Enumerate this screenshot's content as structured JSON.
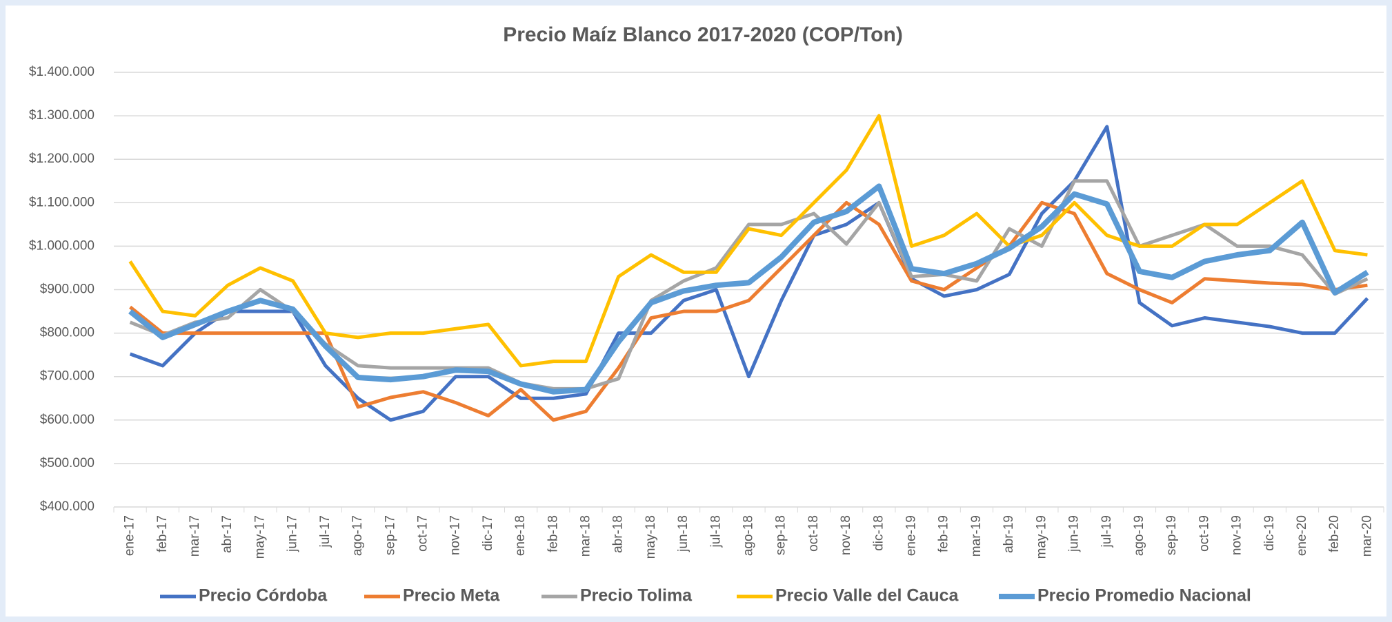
{
  "chart_data": {
    "type": "line",
    "title": "Precio Maíz Blanco 2017-2020 (COP/Ton)",
    "categories": [
      "ene-17",
      "feb-17",
      "mar-17",
      "abr-17",
      "may-17",
      "jun-17",
      "jul-17",
      "ago-17",
      "sep-17",
      "oct-17",
      "nov-17",
      "dic-17",
      "ene-18",
      "feb-18",
      "mar-18",
      "abr-18",
      "may-18",
      "jun-18",
      "jul-18",
      "ago-18",
      "sep-18",
      "oct-18",
      "nov-18",
      "dic-18",
      "ene-19",
      "feb-19",
      "mar-19",
      "abr-19",
      "may-19",
      "jun-19",
      "jul-19",
      "ago-19",
      "sep-19",
      "oct-19",
      "nov-19",
      "dic-19",
      "ene-20",
      "feb-20",
      "mar-20"
    ],
    "series": [
      {
        "name": "Precio Córdoba",
        "color": "#4472c4",
        "values": [
          752000,
          725000,
          800000,
          850000,
          850000,
          850000,
          725000,
          650000,
          600000,
          620000,
          700000,
          700000,
          650000,
          650000,
          660000,
          800000,
          800000,
          875000,
          900000,
          700000,
          875000,
          1025000,
          1050000,
          1100000,
          925000,
          885000,
          900000,
          935000,
          1075000,
          1150000,
          1275000,
          870000,
          817000,
          835000,
          825000,
          815000,
          800000,
          800000,
          880000
        ]
      },
      {
        "name": "Precio Meta",
        "color": "#ed7d31",
        "values": [
          860000,
          800000,
          800000,
          800000,
          800000,
          800000,
          800000,
          630000,
          652000,
          665000,
          640000,
          610000,
          670000,
          600000,
          620000,
          720000,
          835000,
          850000,
          850000,
          875000,
          950000,
          1025000,
          1100000,
          1050000,
          920000,
          900000,
          950000,
          1000000,
          1100000,
          1075000,
          937000,
          900000,
          870000,
          925000,
          920000,
          915000,
          912000,
          900000,
          910000
        ]
      },
      {
        "name": "Precio Tolima",
        "color": "#a5a5a5",
        "values": [
          825000,
          795000,
          825000,
          835000,
          900000,
          850000,
          775000,
          725000,
          720000,
          720000,
          720000,
          720000,
          685000,
          672000,
          672000,
          695000,
          875000,
          920000,
          950000,
          1050000,
          1050000,
          1075000,
          1005000,
          1100000,
          930000,
          935000,
          920000,
          1040000,
          1000000,
          1150000,
          1150000,
          1000000,
          1025000,
          1050000,
          1000000,
          1000000,
          980000,
          890000,
          925000
        ]
      },
      {
        "name": "Precio Valle del Cauca",
        "color": "#ffc000",
        "values": [
          965000,
          850000,
          840000,
          910000,
          950000,
          920000,
          800000,
          790000,
          800000,
          800000,
          810000,
          820000,
          725000,
          735000,
          735000,
          930000,
          980000,
          940000,
          940000,
          1040000,
          1025000,
          1100000,
          1175000,
          1300000,
          1000000,
          1025000,
          1075000,
          1000000,
          1025000,
          1100000,
          1025000,
          1000000,
          1000000,
          1050000,
          1050000,
          1100000,
          1150000,
          990000,
          980000
        ]
      },
      {
        "name": "Precio Promedio Nacional",
        "color": "#5b9bd5",
        "values": [
          850000,
          790000,
          820000,
          850000,
          875000,
          855000,
          770000,
          698000,
          693000,
          700000,
          715000,
          712000,
          683000,
          665000,
          670000,
          780000,
          870000,
          897000,
          910000,
          916000,
          975000,
          1055000,
          1080000,
          1138000,
          948000,
          937000,
          960000,
          995000,
          1045000,
          1120000,
          1097000,
          942000,
          928000,
          965000,
          980000,
          990000,
          1055000,
          893000,
          940000
        ]
      }
    ],
    "ylim": [
      400000,
      1400000
    ],
    "yticks": [
      {
        "value": 400000,
        "label": "$400.000"
      },
      {
        "value": 500000,
        "label": "$500.000"
      },
      {
        "value": 600000,
        "label": "$600.000"
      },
      {
        "value": 700000,
        "label": "$700.000"
      },
      {
        "value": 800000,
        "label": "$800.000"
      },
      {
        "value": 900000,
        "label": "$900.000"
      },
      {
        "value": 1000000,
        "label": "$1.000.000"
      },
      {
        "value": 1100000,
        "label": "$1.100.000"
      },
      {
        "value": 1200000,
        "label": "$1.200.000"
      },
      {
        "value": 1300000,
        "label": "$1.300.000"
      },
      {
        "value": 1400000,
        "label": "$1.400.000"
      }
    ],
    "grid": true,
    "legend": "bottom"
  }
}
